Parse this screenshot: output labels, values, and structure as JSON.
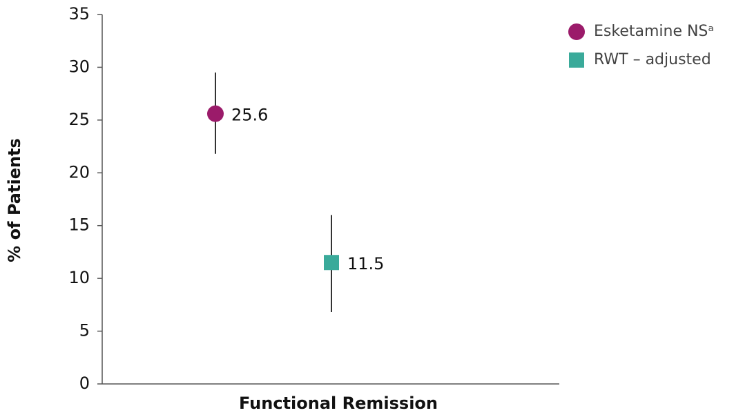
{
  "chart_data": {
    "type": "dot",
    "y_label": "% of Patients",
    "categories": [
      "Functional Remission"
    ],
    "series": [
      {
        "name": "Esketamine NSᵃ",
        "color": "#9b1b6a",
        "marker": "circle",
        "values": [
          25.6
        ],
        "ci_low": [
          21.8
        ],
        "ci_high": [
          29.5
        ]
      },
      {
        "name": "RWT – adjusted",
        "color": "#3aaa9a",
        "marker": "square",
        "values": [
          11.5
        ],
        "ci_low": [
          6.8
        ],
        "ci_high": [
          16.0
        ]
      }
    ],
    "ylim": [
      0,
      35
    ],
    "yticks": [
      0,
      5,
      10,
      15,
      20,
      25,
      30,
      35
    ],
    "legend": "top-right"
  }
}
